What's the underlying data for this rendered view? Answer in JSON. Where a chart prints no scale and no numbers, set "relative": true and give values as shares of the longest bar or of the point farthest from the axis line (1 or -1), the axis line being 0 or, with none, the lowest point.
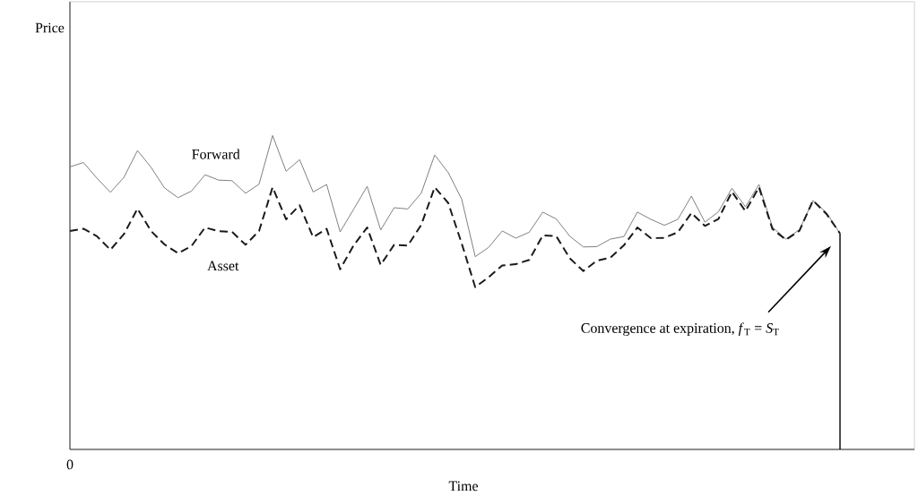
{
  "chart_data": {
    "type": "line",
    "relative": true,
    "xlabel": "Time",
    "marker": "none",
    "categories": [
      null,
      null,
      null,
      null,
      null,
      null,
      null,
      null,
      null,
      null,
      null,
      null,
      null,
      null,
      null,
      null,
      null,
      null,
      null,
      null,
      null,
      null,
      null,
      null,
      null,
      null,
      null,
      null,
      null,
      null,
      null,
      null,
      null,
      null,
      null,
      null,
      null,
      null,
      null,
      null,
      null,
      null,
      null,
      null,
      null,
      null,
      null,
      null,
      null,
      null,
      null,
      null,
      null,
      null,
      null,
      null,
      null,
      null
    ],
    "series": [
      {
        "name": "Forward",
        "color": "#808080",
        "line_style": "solid",
        "values": [
          0.9,
          0.914,
          0.864,
          0.819,
          0.867,
          0.952,
          0.899,
          0.833,
          0.802,
          0.823,
          0.875,
          0.858,
          0.856,
          0.816,
          0.845,
          1.0,
          0.886,
          0.923,
          0.82,
          0.844,
          0.693,
          0.765,
          0.838,
          0.699,
          0.77,
          0.766,
          0.816,
          0.938,
          0.882,
          0.797,
          0.614,
          0.644,
          0.696,
          0.673,
          0.692,
          0.756,
          0.734,
          0.679,
          0.645,
          0.646,
          0.67,
          0.678,
          0.756,
          0.733,
          0.714,
          0.733,
          0.807,
          0.724,
          0.757,
          0.832,
          0.773,
          0.844,
          0.708,
          0.67,
          0.7,
          0.793,
          0.754,
          0.688
        ]
      },
      {
        "name": "Asset",
        "color": "#1a1a1a",
        "line_style": "dashed",
        "values": [
          0.696,
          0.703,
          0.679,
          0.636,
          0.686,
          0.767,
          0.696,
          0.653,
          0.625,
          0.648,
          0.707,
          0.695,
          0.693,
          0.652,
          0.696,
          0.835,
          0.733,
          0.778,
          0.676,
          0.703,
          0.574,
          0.65,
          0.707,
          0.588,
          0.652,
          0.649,
          0.715,
          0.835,
          0.785,
          0.656,
          0.517,
          0.549,
          0.586,
          0.59,
          0.604,
          0.682,
          0.679,
          0.609,
          0.568,
          0.601,
          0.611,
          0.65,
          0.707,
          0.673,
          0.674,
          0.692,
          0.753,
          0.712,
          0.734,
          0.821,
          0.759,
          0.835,
          0.702,
          0.668,
          0.697,
          0.793,
          0.75,
          0.688
        ]
      }
    ],
    "annotations": [
      "0",
      "Convergence at expiration, *f*$_{T}$ = *S*$_{T}$",
      "Price"
    ]
  }
}
